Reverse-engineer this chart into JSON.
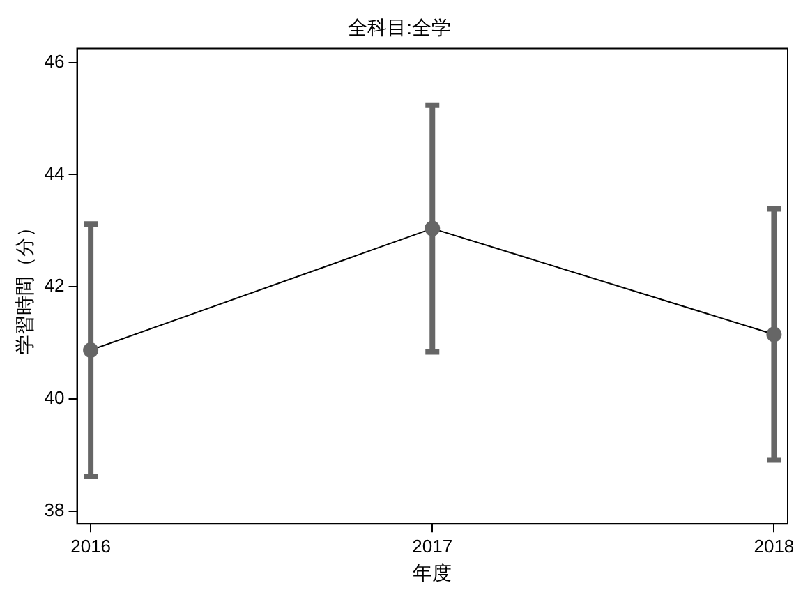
{
  "chart_data": {
    "type": "line",
    "title": "全科目:全学",
    "xlabel": "年度",
    "ylabel": "学習時間（分）",
    "x": [
      2016,
      2017,
      2018
    ],
    "series": [
      {
        "color": "#666666",
        "values": [
          40.87,
          43.04,
          41.15
        ],
        "errors": [
          2.25,
          2.2,
          2.24
        ]
      }
    ],
    "xlim": [
      2015.96,
      2018.04
    ],
    "xticks": [
      2016,
      2017,
      2018
    ],
    "ylim": [
      37.77,
      46.25
    ],
    "yticks": [
      38,
      40,
      42,
      44,
      46
    ],
    "grid": false,
    "legend": false,
    "marker": "circle",
    "line_style": "solid"
  }
}
